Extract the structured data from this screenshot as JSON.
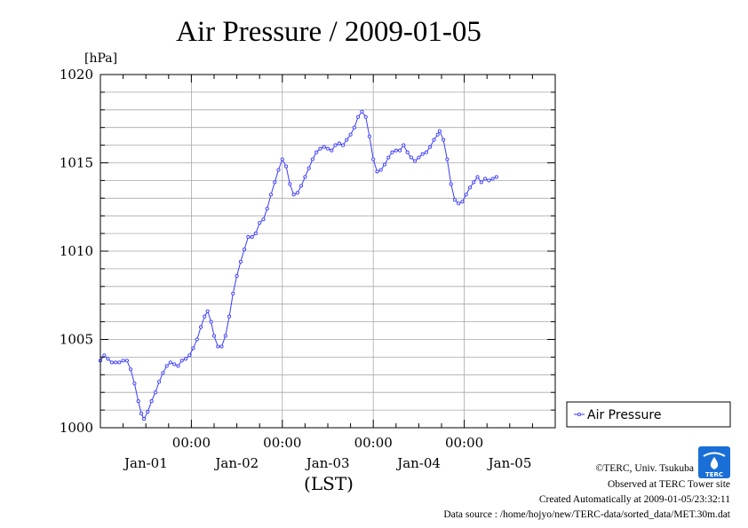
{
  "chart_data": {
    "type": "line",
    "title": "Air Pressure / 2009-01-05",
    "y_unit": "[hPa]",
    "xlabel": "(LST)",
    "ylim": [
      1000,
      1020
    ],
    "y_ticks": [
      1000,
      1005,
      1010,
      1015,
      1020
    ],
    "y_minor_step": 1,
    "x_range_hours": [
      0,
      120
    ],
    "x_major_ticks": [
      {
        "hour": 24,
        "time": "00:00",
        "date": "Jan-01"
      },
      {
        "hour": 48,
        "time": "00:00",
        "date": "Jan-02"
      },
      {
        "hour": 72,
        "time": "00:00",
        "date": "Jan-03"
      },
      {
        "hour": 96,
        "time": "00:00",
        "date": "Jan-04"
      },
      {
        "hour": 120,
        "time": "",
        "date": "Jan-05"
      }
    ],
    "x_minor_step_hours": 6,
    "grid": true,
    "legend_position": "right",
    "series": [
      {
        "name": "Air Pressure",
        "color": "#3a3aff",
        "points": [
          [
            0,
            1003.8
          ],
          [
            1,
            1004.1
          ],
          [
            2,
            1003.9
          ],
          [
            3,
            1003.7
          ],
          [
            4,
            1003.7
          ],
          [
            5,
            1003.7
          ],
          [
            6,
            1003.8
          ],
          [
            7,
            1003.8
          ],
          [
            8,
            1003.3
          ],
          [
            9,
            1002.5
          ],
          [
            10,
            1001.5
          ],
          [
            10.8,
            1000.8
          ],
          [
            11.5,
            1000.5
          ],
          [
            12.5,
            1000.9
          ],
          [
            13.5,
            1001.5
          ],
          [
            14.5,
            1002.0
          ],
          [
            15.5,
            1002.6
          ],
          [
            16.5,
            1003.1
          ],
          [
            17.5,
            1003.5
          ],
          [
            18.5,
            1003.7
          ],
          [
            19.5,
            1003.6
          ],
          [
            20.5,
            1003.5
          ],
          [
            21.5,
            1003.8
          ],
          [
            22.5,
            1003.9
          ],
          [
            23.5,
            1004.1
          ],
          [
            24.5,
            1004.5
          ],
          [
            25.5,
            1005.0
          ],
          [
            26.5,
            1005.7
          ],
          [
            27.5,
            1006.3
          ],
          [
            28.3,
            1006.6
          ],
          [
            29.2,
            1006.0
          ],
          [
            30,
            1005.2
          ],
          [
            31,
            1004.6
          ],
          [
            32,
            1004.6
          ],
          [
            33,
            1005.2
          ],
          [
            34,
            1006.3
          ],
          [
            35,
            1007.6
          ],
          [
            36,
            1008.6
          ],
          [
            37,
            1009.4
          ],
          [
            38,
            1010.1
          ],
          [
            39,
            1010.8
          ],
          [
            40,
            1010.8
          ],
          [
            41,
            1011.0
          ],
          [
            42,
            1011.6
          ],
          [
            43,
            1011.8
          ],
          [
            44,
            1012.4
          ],
          [
            45,
            1013.2
          ],
          [
            46,
            1013.9
          ],
          [
            47,
            1014.6
          ],
          [
            48,
            1015.2
          ],
          [
            49,
            1014.8
          ],
          [
            50,
            1013.8
          ],
          [
            51,
            1013.2
          ],
          [
            52,
            1013.3
          ],
          [
            53,
            1013.7
          ],
          [
            54,
            1014.2
          ],
          [
            55,
            1014.7
          ],
          [
            56,
            1015.2
          ],
          [
            57,
            1015.6
          ],
          [
            58,
            1015.8
          ],
          [
            59,
            1015.9
          ],
          [
            60,
            1015.8
          ],
          [
            61,
            1015.7
          ],
          [
            62,
            1016.0
          ],
          [
            63,
            1016.1
          ],
          [
            64,
            1016.0
          ],
          [
            65,
            1016.3
          ],
          [
            66,
            1016.6
          ],
          [
            67,
            1017.0
          ],
          [
            68,
            1017.6
          ],
          [
            69,
            1017.9
          ],
          [
            70,
            1017.6
          ],
          [
            71,
            1016.5
          ],
          [
            72,
            1015.2
          ],
          [
            73,
            1014.5
          ],
          [
            74,
            1014.6
          ],
          [
            75,
            1014.9
          ],
          [
            76,
            1015.3
          ],
          [
            77,
            1015.6
          ],
          [
            78,
            1015.7
          ],
          [
            79,
            1015.7
          ],
          [
            80,
            1016.0
          ],
          [
            81,
            1015.6
          ],
          [
            82,
            1015.3
          ],
          [
            83,
            1015.1
          ],
          [
            84,
            1015.3
          ],
          [
            85,
            1015.5
          ],
          [
            86,
            1015.6
          ],
          [
            87,
            1015.9
          ],
          [
            88,
            1016.3
          ],
          [
            89,
            1016.6
          ],
          [
            89.5,
            1016.8
          ],
          [
            90.5,
            1016.3
          ],
          [
            91.5,
            1015.2
          ],
          [
            92.5,
            1013.8
          ],
          [
            93.5,
            1012.9
          ],
          [
            94.5,
            1012.7
          ],
          [
            95.5,
            1012.8
          ],
          [
            96.5,
            1013.2
          ],
          [
            97.5,
            1013.6
          ],
          [
            98.5,
            1013.9
          ],
          [
            99.5,
            1014.2
          ],
          [
            100.5,
            1013.9
          ],
          [
            101.5,
            1014.1
          ],
          [
            102.5,
            1014.0
          ],
          [
            103.5,
            1014.1
          ],
          [
            104.5,
            1014.2
          ]
        ]
      }
    ]
  },
  "credits": {
    "copyright": "©TERC, Univ. Tsukuba",
    "observed": "Observed at TERC Tower site",
    "created": "Created Automatically at 2009-01-05/23:32:11",
    "source": "Data source : /home/hojyo/new/TERC-data/sorted_data/MET.30m.dat",
    "logo_text": "TERC",
    "logo_color": "#1a6fd6"
  }
}
